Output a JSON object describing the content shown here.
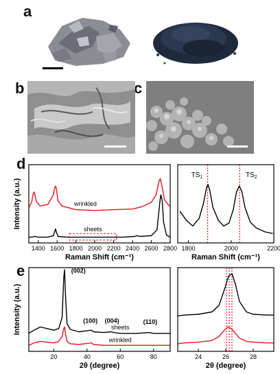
{
  "figure": {
    "panels": {
      "a": "a",
      "b": "b",
      "c": "c",
      "d": "d",
      "e": "e"
    },
    "colors": {
      "sheets": "#000000",
      "wrinkled": "#e8141a",
      "reference_lines": "#e8141a",
      "sem_background": "#9a9a9a"
    },
    "icons": [
      "scale-bar",
      "photo-sheets-powder",
      "photo-dark-powder",
      "sem-image-sheets",
      "sem-image-wrinkled"
    ]
  },
  "chart_data": [
    {
      "id": "d-left",
      "type": "line",
      "xlabel": "Raman Shift (cm⁻¹)",
      "ylabel": "Intensity (a.u.)",
      "xlim": [
        1300,
        2800
      ],
      "xticks": [
        "1400",
        "1600",
        "1800",
        "2000",
        "2200",
        "2400",
        "2600",
        "2800"
      ],
      "annotations": [
        "wrinkled",
        "sheets"
      ],
      "series": [
        {
          "name": "wrinkled",
          "color": "#e8141a",
          "x": [
            1300,
            1330,
            1345,
            1355,
            1365,
            1380,
            1420,
            1500,
            1560,
            1575,
            1585,
            1595,
            1610,
            1650,
            1800,
            2000,
            2200,
            2400,
            2500,
            2600,
            2650,
            2680,
            2695,
            2710,
            2740,
            2800
          ],
          "y": [
            0.45,
            0.52,
            0.63,
            0.66,
            0.62,
            0.53,
            0.47,
            0.49,
            0.62,
            0.72,
            0.74,
            0.68,
            0.54,
            0.47,
            0.42,
            0.41,
            0.42,
            0.43,
            0.46,
            0.52,
            0.62,
            0.8,
            0.84,
            0.76,
            0.55,
            0.46
          ]
        },
        {
          "name": "sheets",
          "color": "#000000",
          "x": [
            1300,
            1340,
            1360,
            1400,
            1500,
            1560,
            1575,
            1583,
            1592,
            1610,
            1700,
            1900,
            2100,
            2300,
            2420,
            2450,
            2480,
            2600,
            2660,
            2690,
            2700,
            2715,
            2730,
            2760,
            2800
          ],
          "y": [
            0.05,
            0.05,
            0.06,
            0.05,
            0.05,
            0.07,
            0.13,
            0.16,
            0.12,
            0.06,
            0.05,
            0.05,
            0.05,
            0.05,
            0.06,
            0.07,
            0.06,
            0.07,
            0.15,
            0.52,
            0.62,
            0.55,
            0.25,
            0.08,
            0.05
          ]
        }
      ]
    },
    {
      "id": "d-right",
      "type": "line",
      "xlabel": "Raman Shift (cm⁻¹)",
      "xlim": [
        1750,
        2200
      ],
      "xticks": [
        "1800",
        "2000",
        "2200"
      ],
      "annotations": [
        "TS1",
        "TS2"
      ],
      "reference_lines": [
        1890,
        2040
      ],
      "series": [
        {
          "name": "",
          "color": "#000000",
          "x": [
            1760,
            1790,
            1820,
            1850,
            1870,
            1885,
            1892,
            1900,
            1915,
            1940,
            1965,
            1990,
            2010,
            2025,
            2038,
            2050,
            2065,
            2090,
            2120,
            2160,
            2195
          ],
          "y": [
            0.4,
            0.28,
            0.2,
            0.3,
            0.5,
            0.72,
            0.76,
            0.68,
            0.45,
            0.28,
            0.2,
            0.24,
            0.42,
            0.66,
            0.74,
            0.67,
            0.45,
            0.25,
            0.17,
            0.12,
            0.1
          ]
        }
      ]
    },
    {
      "id": "e-left",
      "type": "line",
      "xlabel": "2θ (degree)",
      "ylabel": "Intensity (a.u.)",
      "xlim": [
        5,
        90
      ],
      "xticks": [
        "20",
        "40",
        "60",
        "80"
      ],
      "annotations": [
        "(002)",
        "(100)",
        "(004)",
        "(110)",
        "sheets",
        "wrinkled"
      ],
      "series": [
        {
          "name": "sheets",
          "color": "#000000",
          "x": [
            5,
            8,
            12,
            16,
            20,
            23,
            25,
            26,
            26.5,
            27,
            28,
            30,
            35,
            42.5,
            44,
            50,
            54.5,
            56,
            60,
            70,
            77.5,
            80,
            90
          ],
          "y": [
            0.2,
            0.24,
            0.28,
            0.26,
            0.24,
            0.26,
            0.4,
            0.9,
            1.0,
            0.7,
            0.32,
            0.25,
            0.22,
            0.24,
            0.22,
            0.21,
            0.22,
            0.21,
            0.2,
            0.2,
            0.21,
            0.2,
            0.2
          ]
        },
        {
          "name": "wrinkled",
          "color": "#e8141a",
          "x": [
            5,
            8,
            12,
            16,
            20,
            23,
            25,
            26,
            26.5,
            27,
            28,
            30,
            35,
            42.5,
            44,
            50,
            60,
            70,
            80,
            90
          ],
          "y": [
            0.05,
            0.08,
            0.1,
            0.09,
            0.08,
            0.1,
            0.16,
            0.26,
            0.28,
            0.2,
            0.1,
            0.07,
            0.06,
            0.08,
            0.06,
            0.05,
            0.05,
            0.05,
            0.05,
            0.05
          ]
        }
      ]
    },
    {
      "id": "e-right",
      "type": "line",
      "xlabel": "2θ (degree)",
      "xlim": [
        22.5,
        29.5
      ],
      "xticks": [
        "24",
        "26",
        "28"
      ],
      "reference_lines": [
        26.05,
        26.25,
        26.45
      ],
      "series": [
        {
          "name": "sheets",
          "color": "#000000",
          "x": [
            22.5,
            23,
            24,
            25,
            25.5,
            25.9,
            26.2,
            26.45,
            26.7,
            27,
            27.5,
            28,
            29,
            29.5
          ],
          "y": [
            0.42,
            0.43,
            0.44,
            0.47,
            0.55,
            0.75,
            0.92,
            0.95,
            0.82,
            0.6,
            0.47,
            0.44,
            0.43,
            0.43
          ]
        },
        {
          "name": "wrinkled",
          "color": "#e8141a",
          "x": [
            22.5,
            23,
            24,
            25,
            25.5,
            25.9,
            26.15,
            26.4,
            26.7,
            27,
            27.5,
            28,
            29,
            29.5
          ],
          "y": [
            0.07,
            0.08,
            0.09,
            0.11,
            0.16,
            0.24,
            0.28,
            0.26,
            0.2,
            0.14,
            0.1,
            0.09,
            0.08,
            0.08
          ]
        }
      ]
    }
  ]
}
